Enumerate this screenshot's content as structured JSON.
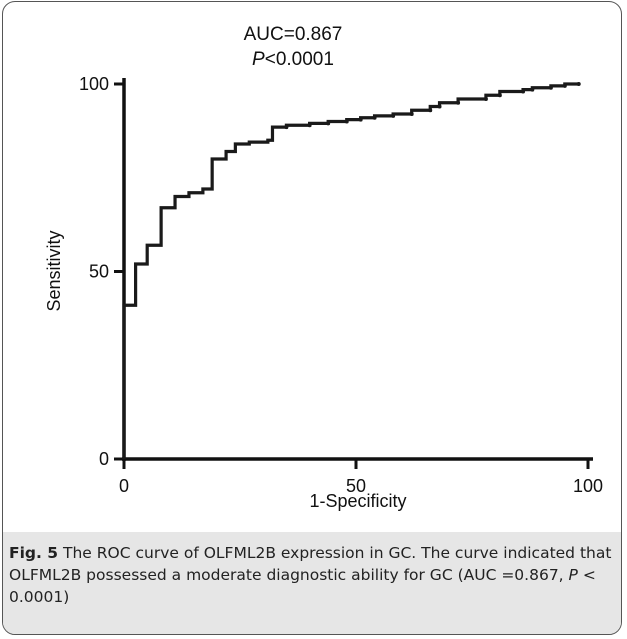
{
  "chart_data": {
    "type": "line",
    "step": true,
    "title_line1": "AUC=0.867",
    "title_line2_italic": "P",
    "title_line2_rest": "<0.0001",
    "xlabel": "1-Specificity",
    "ylabel": "Sensitivity",
    "xlim": [
      0,
      100
    ],
    "ylim": [
      0,
      100
    ],
    "x_ticks": [
      0,
      50,
      100
    ],
    "y_ticks": [
      0,
      50,
      100
    ],
    "line_color": "#1a1a1a",
    "grid": false,
    "legend": "none",
    "points": [
      [
        0,
        0
      ],
      [
        0,
        41
      ],
      [
        2.5,
        41
      ],
      [
        2.5,
        52
      ],
      [
        5,
        52
      ],
      [
        5,
        57
      ],
      [
        8,
        57
      ],
      [
        8,
        67
      ],
      [
        11,
        67
      ],
      [
        11,
        70
      ],
      [
        14,
        70
      ],
      [
        14,
        71
      ],
      [
        17,
        71
      ],
      [
        17,
        72
      ],
      [
        19,
        72
      ],
      [
        19,
        80
      ],
      [
        22,
        80
      ],
      [
        22,
        82
      ],
      [
        24,
        82
      ],
      [
        24,
        84
      ],
      [
        27,
        84
      ],
      [
        27,
        84.5
      ],
      [
        31,
        84.5
      ],
      [
        31,
        85
      ],
      [
        32,
        85
      ],
      [
        32,
        88.5
      ],
      [
        35,
        88.5
      ],
      [
        35,
        89
      ],
      [
        40,
        89
      ],
      [
        40,
        89.5
      ],
      [
        44,
        89.5
      ],
      [
        44,
        90
      ],
      [
        48,
        90
      ],
      [
        48,
        90.5
      ],
      [
        51,
        90.5
      ],
      [
        51,
        91
      ],
      [
        54,
        91
      ],
      [
        54,
        91.5
      ],
      [
        58,
        91.5
      ],
      [
        58,
        92
      ],
      [
        62,
        92
      ],
      [
        62,
        93
      ],
      [
        66,
        93
      ],
      [
        66,
        94
      ],
      [
        68,
        94
      ],
      [
        68,
        95
      ],
      [
        72,
        95
      ],
      [
        72,
        96
      ],
      [
        78,
        96
      ],
      [
        78,
        97
      ],
      [
        81,
        97
      ],
      [
        81,
        98
      ],
      [
        86,
        98
      ],
      [
        86,
        98.5
      ],
      [
        88,
        98.5
      ],
      [
        88,
        99
      ],
      [
        92,
        99
      ],
      [
        92,
        99.5
      ],
      [
        95,
        99.5
      ],
      [
        95,
        100
      ],
      [
        98,
        100
      ]
    ]
  },
  "caption": {
    "fig_label": "Fig. 5",
    "text_before_p": " The ROC curve of OLFML2B expression in GC. The curve indicated that OLFML2B possessed a moderate diagnostic ability for GC (AUC =0.867, ",
    "p_italic": "P",
    "text_after_p": " < 0.0001)"
  }
}
